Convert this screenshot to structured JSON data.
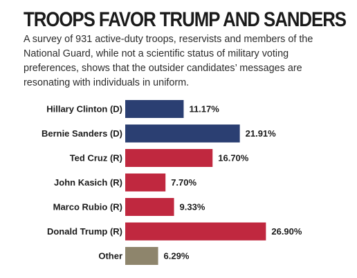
{
  "header": {
    "title": "TROOPS FAVOR TRUMP AND SANDERS",
    "subtitle": "A survey of 931 active-duty troops, reservists and members of the National Guard, while not a scientific status of military voting preferences, shows that the outsider candidates’ messages are resonating with individuals in uniform."
  },
  "colors": {
    "democrat": "#2b3f72",
    "republican": "#c0283f",
    "other": "#8e856c"
  },
  "chart_data": {
    "type": "bar",
    "orientation": "horizontal",
    "title": "TROOPS FAVOR TRUMP AND SANDERS",
    "categories": [
      "Hillary Clinton (D)",
      "Bernie Sanders (D)",
      "Ted Cruz (R)",
      "John Kasich (R)",
      "Marco Rubio (R)",
      "Donald Trump (R)",
      "Other"
    ],
    "values": [
      11.17,
      21.91,
      16.7,
      7.7,
      9.33,
      26.9,
      6.29
    ],
    "value_labels": [
      "11.17%",
      "21.91%",
      "16.70%",
      "7.70%",
      "9.33%",
      "26.90%",
      "6.29%"
    ],
    "bar_colors": [
      "#2b3f72",
      "#2b3f72",
      "#c0283f",
      "#c0283f",
      "#c0283f",
      "#c0283f",
      "#8e856c"
    ],
    "xlim": [
      0,
      30
    ],
    "grid": false,
    "legend": "none"
  }
}
